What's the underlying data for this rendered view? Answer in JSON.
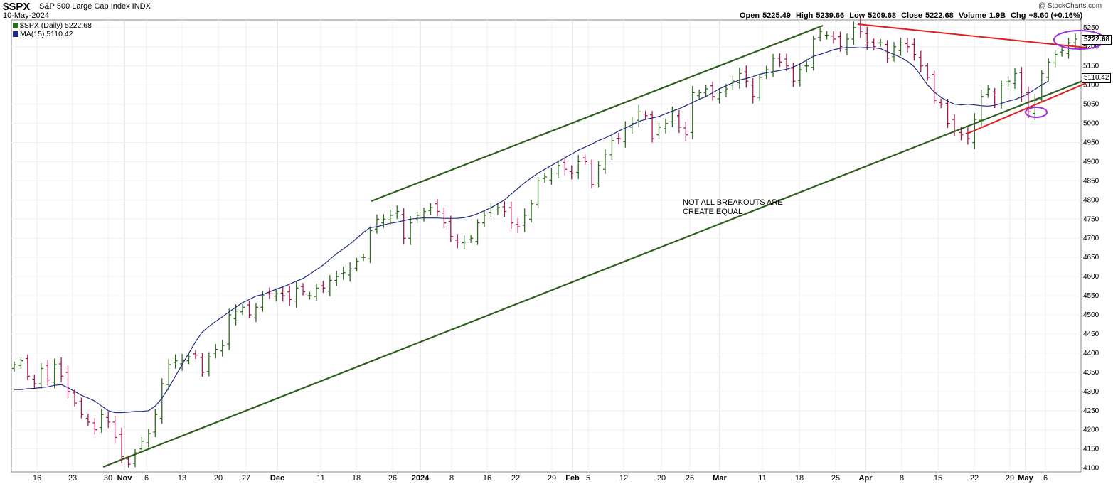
{
  "header": {
    "symbol": "$SPX",
    "description": "S&P 500 Large Cap Index  INDX",
    "date": "10-May-2024",
    "open_label": "Open",
    "open": "5225.49",
    "high_label": "High",
    "high": "5239.66",
    "low_label": "Low",
    "low": "5209.68",
    "close_label": "Close",
    "close": "5222.68",
    "volume_label": "Volume",
    "volume": "1.9B",
    "chg_label": "Chg",
    "chg": "+8.60 (+0.16%)",
    "credit": "@ StockCharts.com"
  },
  "legend": {
    "price": "$SPX (Daily) 5222.68",
    "ma": "MA(15) 5110.42"
  },
  "annotation": "NOT ALL BREAKOUTS ARE\nCREATE EQUAL",
  "last_tags": {
    "price": "5222.68",
    "ma": "5110.42"
  },
  "colors": {
    "up": "#2e6b1f",
    "down": "#a8164f",
    "ma": "#1f2a80",
    "channel": "#2e5e1f",
    "trend": "#e0201c",
    "highlight": "#9b30d8"
  },
  "chart_data": {
    "type": "ohlc",
    "ylim": [
      4090,
      5270
    ],
    "yticks": [
      4100,
      4150,
      4200,
      4250,
      4300,
      4350,
      4400,
      4450,
      4500,
      4550,
      4600,
      4650,
      4700,
      4750,
      4800,
      4850,
      4900,
      4950,
      5000,
      5050,
      5100,
      5150,
      5200,
      5250
    ],
    "xticks": [
      {
        "label": "16",
        "bold": false
      },
      {
        "label": "23",
        "bold": false
      },
      {
        "label": "30",
        "bold": false
      },
      {
        "label": "Nov",
        "bold": true
      },
      {
        "label": "6",
        "bold": false
      },
      {
        "label": "13",
        "bold": false
      },
      {
        "label": "20",
        "bold": false
      },
      {
        "label": "27",
        "bold": false
      },
      {
        "label": "Dec",
        "bold": true
      },
      {
        "label": "11",
        "bold": false
      },
      {
        "label": "18",
        "bold": false
      },
      {
        "label": "26",
        "bold": false
      },
      {
        "label": "2024",
        "bold": true
      },
      {
        "label": "8",
        "bold": false
      },
      {
        "label": "16",
        "bold": false
      },
      {
        "label": "22",
        "bold": false
      },
      {
        "label": "29",
        "bold": false
      },
      {
        "label": "Feb",
        "bold": true
      },
      {
        "label": "5",
        "bold": false
      },
      {
        "label": "12",
        "bold": false
      },
      {
        "label": "20",
        "bold": false
      },
      {
        "label": "26",
        "bold": false
      },
      {
        "label": "Mar",
        "bold": true
      },
      {
        "label": "11",
        "bold": false
      },
      {
        "label": "18",
        "bold": false
      },
      {
        "label": "25",
        "bold": false
      },
      {
        "label": "Apr",
        "bold": true
      },
      {
        "label": "8",
        "bold": false
      },
      {
        "label": "15",
        "bold": false
      },
      {
        "label": "22",
        "bold": false
      },
      {
        "label": "29",
        "bold": false
      },
      {
        "label": "May",
        "bold": true
      },
      {
        "label": "6",
        "bold": false
      }
    ],
    "series": [
      {
        "name": "$SPX (Daily)",
        "closes": [
          4370,
          4380,
          4340,
          4320,
          4360,
          4330,
          4370,
          4340,
          4300,
          4270,
          4240,
          4220,
          4200,
          4240,
          4220,
          4180,
          4130,
          4110,
          4140,
          4170,
          4190,
          4240,
          4320,
          4370,
          4380,
          4380,
          4390,
          4395,
          4350,
          4390,
          4410,
          4420,
          4500,
          4510,
          4520,
          4500,
          4520,
          4550,
          4555,
          4555,
          4550,
          4540,
          4570,
          4560,
          4550,
          4570,
          4570,
          4590,
          4600,
          4610,
          4620,
          4640,
          4650,
          4720,
          4750,
          4750,
          4760,
          4770,
          4700,
          4740,
          4760,
          4770,
          4780,
          4770,
          4740,
          4705,
          4690,
          4690,
          4700,
          4740,
          4760,
          4780,
          4780,
          4770,
          4740,
          4730,
          4760,
          4790,
          4850,
          4860,
          4870,
          4890,
          4880,
          4870,
          4900,
          4900,
          4840,
          4890,
          4920,
          4955,
          4960,
          4990,
          5000,
          5030,
          5020,
          4960,
          4990,
          5000,
          5030,
          4990,
          4970,
          5080,
          5080,
          5090,
          5070,
          5080,
          5090,
          5110,
          5130,
          5110,
          5070,
          5120,
          5140,
          5170,
          5160,
          5150,
          5110,
          5140,
          5150,
          5220,
          5240,
          5230,
          5220,
          5200,
          5220,
          5250,
          5240,
          5210,
          5200,
          5210,
          5170,
          5200,
          5210,
          5200,
          5180,
          5150,
          5120,
          5060,
          5050,
          5000,
          4980,
          4970,
          4960,
          5010,
          5070,
          5090,
          5050,
          5100,
          5110,
          5130,
          5070,
          5030,
          5060,
          5130,
          5160,
          5180,
          5190,
          5210,
          5220
        ]
      },
      {
        "name": "MA(15)",
        "values": [
          4305,
          4305,
          4307,
          4308,
          4310,
          4312,
          4316,
          4318,
          4310,
          4300,
          4290,
          4283,
          4275,
          4262,
          4250,
          4245,
          4245,
          4246,
          4248,
          4248,
          4250,
          4262,
          4282,
          4310,
          4340,
          4370,
          4400,
          4430,
          4455,
          4470,
          4483,
          4495,
          4508,
          4520,
          4532,
          4540,
          4549,
          4553,
          4560,
          4567,
          4573,
          4580,
          4588,
          4595,
          4606,
          4618,
          4630,
          4645,
          4660,
          4672,
          4685,
          4700,
          4715,
          4728,
          4730,
          4735,
          4739,
          4742,
          4746,
          4750,
          4752,
          4753,
          4753,
          4753,
          4752,
          4752,
          4752,
          4754,
          4758,
          4764,
          4772,
          4780,
          4790,
          4800,
          4815,
          4830,
          4845,
          4858,
          4870,
          4880,
          4890,
          4900,
          4910,
          4920,
          4930,
          4938,
          4946,
          4955,
          4962,
          4970,
          4980,
          4988,
          4996,
          5005,
          5010,
          5014,
          5018,
          5025,
          5032,
          5038,
          5046,
          5054,
          5063,
          5070,
          5080,
          5090,
          5098,
          5106,
          5113,
          5117,
          5122,
          5128,
          5132,
          5135,
          5138,
          5141,
          5147,
          5155,
          5165,
          5175,
          5180,
          5186,
          5192,
          5196,
          5198,
          5198,
          5197,
          5198,
          5197,
          5195,
          5187,
          5180,
          5172,
          5162,
          5148,
          5125,
          5100,
          5082,
          5068,
          5058,
          5050,
          5048,
          5050,
          5048,
          5046,
          5045,
          5047,
          5052,
          5058,
          5062,
          5069,
          5078,
          5089,
          5100,
          5110
        ]
      }
    ]
  }
}
